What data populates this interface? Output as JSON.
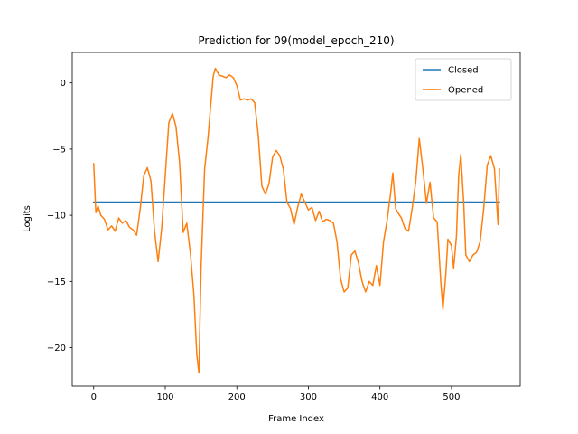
{
  "chart_data": {
    "type": "line",
    "title": "Prediction for 09(model_epoch_210)",
    "xlabel": "Frame Index",
    "ylabel": "Logits",
    "xlim": [
      -30,
      596
    ],
    "ylim": [
      -22.9,
      2.3
    ],
    "xticks": [
      0,
      100,
      200,
      300,
      400,
      500
    ],
    "yticks": [
      0,
      -5,
      -10,
      -15,
      -20
    ],
    "ytick_labels": [
      "0",
      "−5",
      "−10",
      "−15",
      "−20"
    ],
    "grid": false,
    "legend": "top-right",
    "series": [
      {
        "name": "Closed",
        "color": "#1f77b4",
        "points": [
          [
            0,
            -9.0
          ],
          [
            567,
            -9.0
          ]
        ]
      },
      {
        "name": "Opened",
        "color": "#ff7f0e",
        "points": [
          [
            0,
            -6.1
          ],
          [
            3,
            -9.8
          ],
          [
            6,
            -9.3
          ],
          [
            10,
            -10.0
          ],
          [
            15,
            -10.3
          ],
          [
            20,
            -11.1
          ],
          [
            25,
            -10.8
          ],
          [
            30,
            -11.2
          ],
          [
            35,
            -10.2
          ],
          [
            40,
            -10.6
          ],
          [
            45,
            -10.4
          ],
          [
            50,
            -10.9
          ],
          [
            55,
            -11.1
          ],
          [
            60,
            -11.5
          ],
          [
            65,
            -9.5
          ],
          [
            70,
            -7.0
          ],
          [
            75,
            -6.4
          ],
          [
            80,
            -7.4
          ],
          [
            85,
            -11.2
          ],
          [
            90,
            -13.5
          ],
          [
            95,
            -11.0
          ],
          [
            100,
            -7.0
          ],
          [
            105,
            -3.0
          ],
          [
            110,
            -2.3
          ],
          [
            115,
            -3.3
          ],
          [
            120,
            -6.0
          ],
          [
            125,
            -11.3
          ],
          [
            130,
            -10.6
          ],
          [
            135,
            -12.8
          ],
          [
            140,
            -16.0
          ],
          [
            144,
            -20.5
          ],
          [
            147,
            -21.9
          ],
          [
            150,
            -14.0
          ],
          [
            155,
            -6.5
          ],
          [
            160,
            -4.0
          ],
          [
            163,
            -2.0
          ],
          [
            167,
            0.5
          ],
          [
            170,
            1.1
          ],
          [
            175,
            0.6
          ],
          [
            180,
            0.5
          ],
          [
            185,
            0.4
          ],
          [
            190,
            0.6
          ],
          [
            195,
            0.4
          ],
          [
            200,
            -0.2
          ],
          [
            205,
            -1.3
          ],
          [
            210,
            -1.2
          ],
          [
            215,
            -1.3
          ],
          [
            220,
            -1.2
          ],
          [
            225,
            -1.5
          ],
          [
            230,
            -4.0
          ],
          [
            235,
            -7.8
          ],
          [
            240,
            -8.4
          ],
          [
            245,
            -7.6
          ],
          [
            250,
            -5.6
          ],
          [
            255,
            -5.1
          ],
          [
            260,
            -5.5
          ],
          [
            265,
            -6.5
          ],
          [
            270,
            -9.0
          ],
          [
            275,
            -9.5
          ],
          [
            280,
            -10.7
          ],
          [
            285,
            -9.4
          ],
          [
            290,
            -8.4
          ],
          [
            295,
            -9.0
          ],
          [
            300,
            -9.6
          ],
          [
            305,
            -9.4
          ],
          [
            310,
            -10.4
          ],
          [
            315,
            -9.7
          ],
          [
            320,
            -10.5
          ],
          [
            325,
            -10.3
          ],
          [
            330,
            -10.4
          ],
          [
            335,
            -10.6
          ],
          [
            340,
            -12.0
          ],
          [
            345,
            -14.8
          ],
          [
            350,
            -15.8
          ],
          [
            355,
            -15.5
          ],
          [
            360,
            -13.0
          ],
          [
            365,
            -12.7
          ],
          [
            370,
            -13.6
          ],
          [
            375,
            -15.0
          ],
          [
            380,
            -15.8
          ],
          [
            385,
            -15.0
          ],
          [
            390,
            -15.3
          ],
          [
            395,
            -13.8
          ],
          [
            400,
            -15.3
          ],
          [
            405,
            -12.0
          ],
          [
            410,
            -10.4
          ],
          [
            415,
            -8.3
          ],
          [
            418,
            -6.8
          ],
          [
            422,
            -9.5
          ],
          [
            425,
            -9.8
          ],
          [
            430,
            -10.2
          ],
          [
            435,
            -11.0
          ],
          [
            440,
            -11.2
          ],
          [
            445,
            -9.5
          ],
          [
            450,
            -7.5
          ],
          [
            455,
            -4.2
          ],
          [
            460,
            -6.5
          ],
          [
            465,
            -9.1
          ],
          [
            470,
            -7.5
          ],
          [
            475,
            -10.2
          ],
          [
            480,
            -10.5
          ],
          [
            485,
            -15.0
          ],
          [
            488,
            -17.1
          ],
          [
            492,
            -14.5
          ],
          [
            495,
            -11.8
          ],
          [
            500,
            -12.3
          ],
          [
            503,
            -14.0
          ],
          [
            507,
            -11.5
          ],
          [
            510,
            -7.0
          ],
          [
            513,
            -5.4
          ],
          [
            517,
            -9.0
          ],
          [
            520,
            -13.0
          ],
          [
            525,
            -13.5
          ],
          [
            530,
            -13.0
          ],
          [
            535,
            -12.8
          ],
          [
            540,
            -12.0
          ],
          [
            545,
            -9.5
          ],
          [
            550,
            -6.2
          ],
          [
            555,
            -5.5
          ],
          [
            560,
            -6.5
          ],
          [
            565,
            -10.7
          ],
          [
            567,
            -6.5
          ]
        ]
      }
    ]
  }
}
